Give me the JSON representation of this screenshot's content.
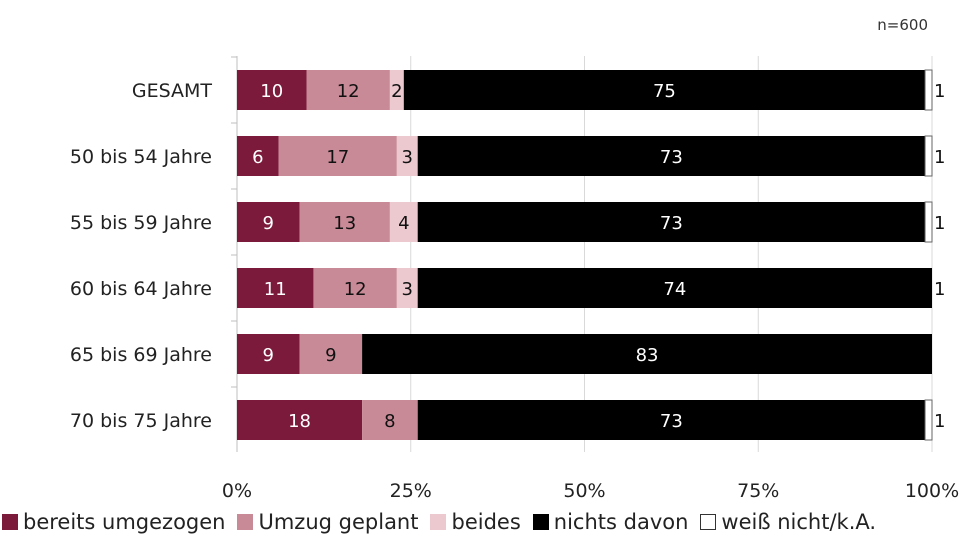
{
  "chart_data": {
    "type": "bar",
    "orientation": "horizontal",
    "stacked": true,
    "sample_note": "n=600",
    "categories": [
      "GESAMT",
      "50 bis 54 Jahre",
      "55 bis 59 Jahre",
      "60 bis 64 Jahre",
      "65 bis 69 Jahre",
      "70 bis 75 Jahre"
    ],
    "series": [
      {
        "name": "bereits umgezogen",
        "color": "#7b1a3a",
        "values": [
          10,
          6,
          9,
          11,
          9,
          18
        ],
        "labels": [
          "10",
          "6",
          "9",
          "11",
          "9",
          "18"
        ]
      },
      {
        "name": "Umzug geplant",
        "color": "#c98a97",
        "values": [
          12,
          17,
          13,
          12,
          9,
          8
        ],
        "labels": [
          "12",
          "17",
          "13",
          "12",
          "9",
          "8"
        ]
      },
      {
        "name": "beides",
        "color": "#ecc9cf",
        "values": [
          2,
          3,
          4,
          3,
          0,
          0
        ],
        "labels": [
          "2",
          "3",
          "4",
          "3",
          "",
          ""
        ]
      },
      {
        "name": "nichts davon",
        "color": "#000000",
        "values": [
          75,
          73,
          73,
          74,
          83,
          73
        ],
        "labels": [
          "75",
          "73",
          "73",
          "74",
          "83",
          "73"
        ]
      },
      {
        "name": "weiß nicht/k.A.",
        "color": "#ffffff",
        "values": [
          1,
          1,
          1,
          1,
          0,
          1
        ],
        "labels": [
          "1",
          "1",
          "1",
          "1",
          "",
          "1"
        ]
      }
    ],
    "x_ticks": [
      "0%",
      "25%",
      "50%",
      "75%",
      "100%"
    ],
    "xlim": [
      0,
      100
    ],
    "grid": true,
    "legend_position": "bottom"
  }
}
